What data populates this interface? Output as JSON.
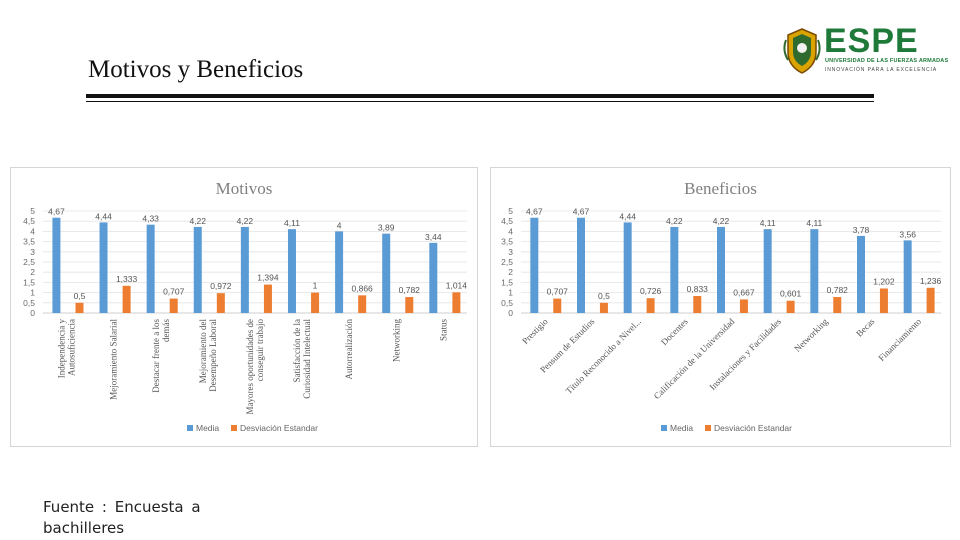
{
  "slide": {
    "title": "Motivos y Beneficios",
    "footer": "Fuente : Encuesta a bachilleres"
  },
  "logo": {
    "name": "ESPE",
    "line1": "UNIVERSIDAD DE LAS FUERZAS ARMADAS",
    "line2": "INNOVACIÓN PARA LA EXCELENCIA",
    "color": "#1f7a3a"
  },
  "chart_data": [
    {
      "type": "bar",
      "title": "Motivos",
      "categories": [
        "Independencia y Autosuficiencia",
        "Mejoramiento Salarial",
        "Destacar frente a los demás",
        "Mejoramiento del Desempeño Laboral",
        "Mayores oportunidades de conseguir trabajo",
        "Satisfacción de la Curiosidad Intelectual",
        "Autorrealización",
        "Networking",
        "Status"
      ],
      "series": [
        {
          "name": "Media",
          "color": "#5b9bd5",
          "values": [
            4.67,
            4.44,
            4.33,
            4.22,
            4.22,
            4.11,
            4,
            3.89,
            3.44
          ],
          "labels": [
            "4,67",
            "4,44",
            "4,33",
            "4,22",
            "4,22",
            "4,11",
            "4",
            "3,89",
            "3,44"
          ]
        },
        {
          "name": "Desviación Estandar",
          "color": "#ed7d31",
          "values": [
            0.5,
            1.333,
            0.707,
            0.972,
            1.394,
            1,
            0.866,
            0.782,
            1.014
          ],
          "labels": [
            "0,5",
            "1,333",
            "0,707",
            "0,972",
            "1,394",
            "1",
            "0,866",
            "0,782",
            "1,014"
          ]
        }
      ],
      "yticks": [
        "0",
        "0,5",
        "1",
        "1,5",
        "2",
        "2,5",
        "3",
        "3,5",
        "4",
        "4,5",
        "5"
      ],
      "ylim": [
        0,
        5
      ],
      "xlabel": "",
      "ylabel": "",
      "legend": "bottom"
    },
    {
      "type": "bar",
      "title": "Beneficios",
      "categories": [
        "Prestigio",
        "Pensum de Estudios",
        "Título Reconocido a Nivel...",
        "Docentes",
        "Calificación de la Universidad",
        "Instalaciones y Facilidades",
        "Networking",
        "Becas",
        "Financiamiento"
      ],
      "series": [
        {
          "name": "Media",
          "color": "#5b9bd5",
          "values": [
            4.67,
            4.67,
            4.44,
            4.22,
            4.22,
            4.11,
            4.11,
            3.78,
            3.56
          ],
          "labels": [
            "4,67",
            "4,67",
            "4,44",
            "4,22",
            "4,22",
            "4,11",
            "4,11",
            "3,78",
            "3,56"
          ]
        },
        {
          "name": "Desviación Estandar",
          "color": "#ed7d31",
          "values": [
            0.707,
            0.5,
            0.726,
            0.833,
            0.667,
            0.601,
            0.782,
            1.202,
            1.236
          ],
          "labels": [
            "0,707",
            "0,5",
            "0,726",
            "0,833",
            "0,667",
            "0,601",
            "0,782",
            "1,202",
            "1,236"
          ]
        }
      ],
      "yticks": [
        "0",
        "0,5",
        "1",
        "1,5",
        "2",
        "2,5",
        "3",
        "3,5",
        "4",
        "4,5",
        "5"
      ],
      "ylim": [
        0,
        5
      ],
      "xlabel": "",
      "ylabel": "",
      "legend": "bottom"
    }
  ]
}
